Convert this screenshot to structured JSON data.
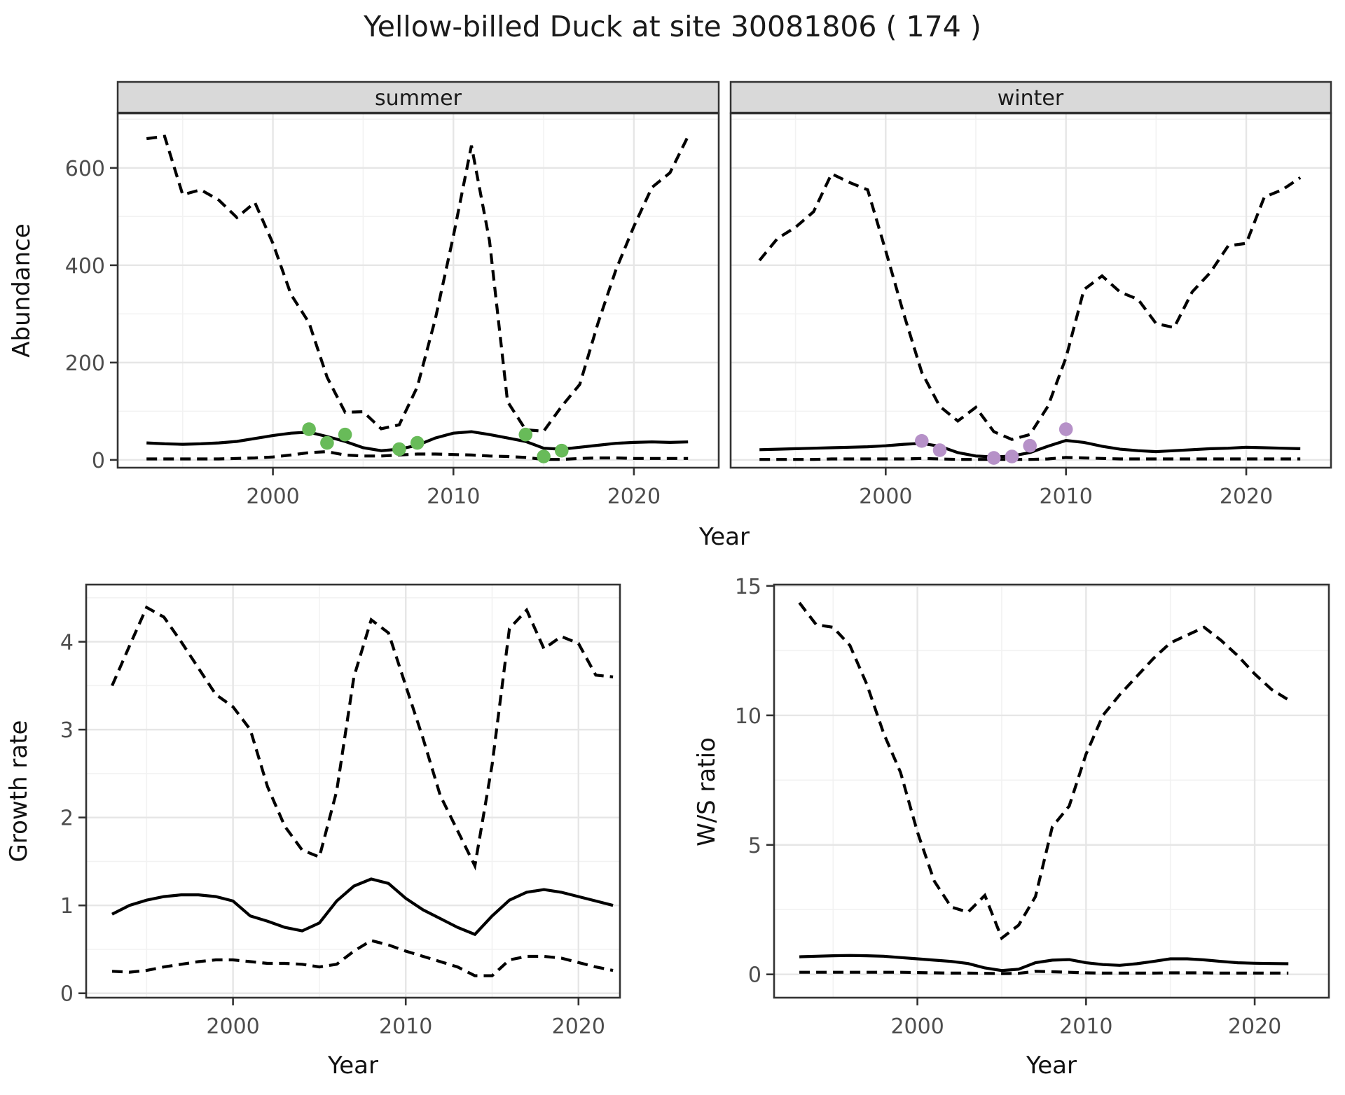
{
  "title": "Yellow-billed Duck at site 30081806 ( 174 )",
  "colors": {
    "summer_points": "#68bb59",
    "winter_points": "#b691c8",
    "line": "#000000",
    "strip_bg": "#d9d9d9",
    "panel_border": "#333333",
    "grid_major": "#e6e6e6",
    "grid_minor": "#f2f2f2",
    "tick_text": "#4d4d4d"
  },
  "axes": {
    "x_label": "Year",
    "abundance_label": "Abundance",
    "growth_label": "Growth rate",
    "ws_label": "W/S ratio"
  },
  "chart_data": [
    {
      "id": "summer",
      "type": "line",
      "facet_label": "summer",
      "x_label": "Year",
      "y_label": "Abundance",
      "xlim": [
        1991.4,
        2024.7
      ],
      "ylim": [
        -16,
        712
      ],
      "x_ticks": [
        2000,
        2010,
        2020
      ],
      "y_ticks": [
        0,
        200,
        400,
        600
      ],
      "x_minor": [
        1995,
        2005,
        2015
      ],
      "y_minor": [
        100,
        300,
        500,
        700
      ],
      "x": [
        1993,
        1994,
        1995,
        1996,
        1997,
        1998,
        1999,
        2000,
        2001,
        2002,
        2003,
        2004,
        2005,
        2006,
        2007,
        2008,
        2009,
        2010,
        2011,
        2012,
        2013,
        2014,
        2015,
        2016,
        2017,
        2018,
        2019,
        2020,
        2021,
        2022,
        2023
      ],
      "series": [
        {
          "name": "upper_ci",
          "style": "dashed",
          "values": [
            660,
            665,
            545,
            555,
            534,
            498,
            529,
            445,
            340,
            282,
            170,
            98,
            99,
            64,
            72,
            150,
            290,
            460,
            646,
            450,
            120,
            62,
            59,
            110,
            155,
            280,
            390,
            480,
            560,
            590,
            665
          ]
        },
        {
          "name": "median",
          "style": "solid",
          "values": [
            35,
            33,
            32,
            33,
            35,
            38,
            44,
            50,
            55,
            57,
            48,
            38,
            25,
            19,
            22,
            30,
            45,
            55,
            58,
            52,
            45,
            38,
            24,
            22,
            26,
            30,
            34,
            36,
            37,
            36,
            37
          ]
        },
        {
          "name": "lower_ci",
          "style": "dashed",
          "values": [
            2,
            2,
            2,
            2,
            2,
            3,
            4,
            6,
            10,
            15,
            17,
            10,
            8,
            8,
            10,
            12,
            12,
            11,
            10,
            8,
            7,
            5,
            1,
            1,
            3,
            4,
            4,
            3,
            3,
            3,
            3
          ]
        }
      ],
      "points": {
        "name": "observed-counts-summer",
        "color": "#68bb59",
        "x": [
          2002,
          2003,
          2004,
          2007,
          2008,
          2014,
          2015,
          2016
        ],
        "y": [
          63,
          35,
          52,
          22,
          35,
          52,
          7,
          19
        ]
      }
    },
    {
      "id": "winter",
      "type": "line",
      "facet_label": "winter",
      "x_label": "Year",
      "y_label": "Abundance",
      "xlim": [
        1991.4,
        2024.7
      ],
      "ylim": [
        -16,
        712
      ],
      "x_ticks": [
        2000,
        2010,
        2020
      ],
      "y_ticks": [
        0,
        200,
        400,
        600
      ],
      "x_minor": [
        1995,
        2005,
        2015
      ],
      "y_minor": [
        100,
        300,
        500,
        700
      ],
      "x": [
        1993,
        1994,
        1995,
        1996,
        1997,
        1998,
        1999,
        2000,
        2001,
        2002,
        2003,
        2004,
        2005,
        2006,
        2007,
        2008,
        2009,
        2010,
        2011,
        2012,
        2013,
        2014,
        2015,
        2016,
        2017,
        2018,
        2019,
        2020,
        2021,
        2022,
        2023
      ],
      "series": [
        {
          "name": "upper_ci",
          "style": "dashed",
          "values": [
            410,
            455,
            478,
            510,
            588,
            570,
            555,
            430,
            300,
            180,
            110,
            80,
            108,
            58,
            42,
            52,
            110,
            210,
            350,
            378,
            345,
            330,
            280,
            272,
            345,
            385,
            440,
            445,
            540,
            555,
            580
          ]
        },
        {
          "name": "median",
          "style": "solid",
          "values": [
            21,
            22,
            23,
            24,
            25,
            26,
            27,
            29,
            32,
            34,
            28,
            15,
            8,
            6,
            8,
            15,
            28,
            40,
            36,
            28,
            22,
            19,
            17,
            19,
            21,
            23,
            24,
            26,
            25,
            24,
            23
          ]
        },
        {
          "name": "lower_ci",
          "style": "dashed",
          "values": [
            1,
            1,
            1,
            1,
            2,
            2,
            2,
            2,
            2,
            3,
            2,
            1,
            1,
            1,
            1,
            1,
            2,
            5,
            4,
            3,
            2,
            2,
            2,
            2,
            2,
            2,
            2,
            2,
            2,
            2,
            2
          ]
        }
      ],
      "points": {
        "name": "observed-counts-winter",
        "color": "#b691c8",
        "x": [
          2002,
          2003,
          2006,
          2007,
          2008,
          2010
        ],
        "y": [
          39,
          20,
          4,
          7,
          29,
          63
        ]
      }
    },
    {
      "id": "growth",
      "type": "line",
      "facet_label": "",
      "x_label": "Year",
      "y_label": "Growth rate",
      "xlim": [
        1991.5,
        2022.4
      ],
      "ylim": [
        -0.05,
        4.65
      ],
      "x_ticks": [
        2000,
        2010,
        2020
      ],
      "y_ticks": [
        0,
        1,
        2,
        3,
        4
      ],
      "x_minor": [
        1995,
        2005,
        2015
      ],
      "y_minor": [
        0.5,
        1.5,
        2.5,
        3.5,
        4.5
      ],
      "x": [
        1993,
        1994,
        1995,
        1996,
        1997,
        1998,
        1999,
        2000,
        2001,
        2002,
        2003,
        2004,
        2005,
        2006,
        2007,
        2008,
        2009,
        2010,
        2011,
        2012,
        2013,
        2014,
        2015,
        2016,
        2017,
        2018,
        2019,
        2020,
        2021,
        2022
      ],
      "series": [
        {
          "name": "upper_ci",
          "style": "dashed",
          "values": [
            3.5,
            3.95,
            4.39,
            4.28,
            4.0,
            3.7,
            3.4,
            3.26,
            3.0,
            2.35,
            1.9,
            1.63,
            1.55,
            2.3,
            3.6,
            4.25,
            4.1,
            3.5,
            2.9,
            2.25,
            1.85,
            1.45,
            2.6,
            4.15,
            4.36,
            3.92,
            4.06,
            3.98,
            3.62,
            3.6
          ]
        },
        {
          "name": "median",
          "style": "solid",
          "values": [
            0.9,
            1.0,
            1.06,
            1.1,
            1.12,
            1.12,
            1.1,
            1.05,
            0.88,
            0.82,
            0.75,
            0.71,
            0.8,
            1.05,
            1.22,
            1.3,
            1.25,
            1.08,
            0.95,
            0.85,
            0.75,
            0.67,
            0.88,
            1.06,
            1.15,
            1.18,
            1.15,
            1.1,
            1.05,
            1.0
          ]
        },
        {
          "name": "lower_ci",
          "style": "dashed",
          "values": [
            0.25,
            0.24,
            0.26,
            0.3,
            0.33,
            0.36,
            0.38,
            0.38,
            0.36,
            0.34,
            0.34,
            0.33,
            0.3,
            0.33,
            0.48,
            0.6,
            0.55,
            0.48,
            0.42,
            0.36,
            0.3,
            0.2,
            0.2,
            0.38,
            0.42,
            0.42,
            0.4,
            0.35,
            0.3,
            0.26
          ]
        }
      ],
      "points": null
    },
    {
      "id": "ws",
      "type": "line",
      "facet_label": "",
      "x_label": "Year",
      "y_label": "W/S ratio",
      "xlim": [
        1991.5,
        2024.4
      ],
      "ylim": [
        -0.9,
        15.05
      ],
      "x_ticks": [
        2000,
        2010,
        2020
      ],
      "y_ticks": [
        0,
        5,
        10,
        15
      ],
      "x_minor": [
        1995,
        2005,
        2015
      ],
      "y_minor": [
        2.5,
        7.5,
        12.5
      ],
      "x": [
        1993,
        1994,
        1995,
        1996,
        1997,
        1998,
        1999,
        2000,
        2001,
        2002,
        2003,
        2004,
        2005,
        2006,
        2007,
        2008,
        2009,
        2010,
        2011,
        2012,
        2013,
        2014,
        2015,
        2016,
        2017,
        2018,
        2019,
        2020,
        2021,
        2022
      ],
      "series": [
        {
          "name": "upper_ci",
          "style": "dashed",
          "values": [
            14.35,
            13.5,
            13.4,
            12.7,
            11.2,
            9.3,
            7.8,
            5.5,
            3.6,
            2.6,
            2.4,
            3.05,
            1.4,
            1.9,
            3.0,
            5.7,
            6.5,
            8.5,
            10.0,
            10.8,
            11.5,
            12.2,
            12.8,
            13.1,
            13.4,
            12.9,
            12.3,
            11.6,
            11.0,
            10.6
          ]
        },
        {
          "name": "median",
          "style": "solid",
          "values": [
            0.68,
            0.7,
            0.72,
            0.73,
            0.72,
            0.7,
            0.65,
            0.6,
            0.55,
            0.5,
            0.42,
            0.25,
            0.15,
            0.2,
            0.45,
            0.55,
            0.57,
            0.45,
            0.38,
            0.35,
            0.41,
            0.5,
            0.6,
            0.6,
            0.56,
            0.5,
            0.45,
            0.43,
            0.42,
            0.41
          ]
        },
        {
          "name": "lower_ci",
          "style": "dashed",
          "values": [
            0.08,
            0.08,
            0.08,
            0.08,
            0.08,
            0.08,
            0.08,
            0.07,
            0.06,
            0.05,
            0.05,
            0.04,
            0.03,
            0.04,
            0.12,
            0.1,
            0.08,
            0.06,
            0.05,
            0.05,
            0.05,
            0.05,
            0.06,
            0.06,
            0.06,
            0.05,
            0.05,
            0.05,
            0.05,
            0.05
          ]
        }
      ],
      "points": null
    }
  ]
}
